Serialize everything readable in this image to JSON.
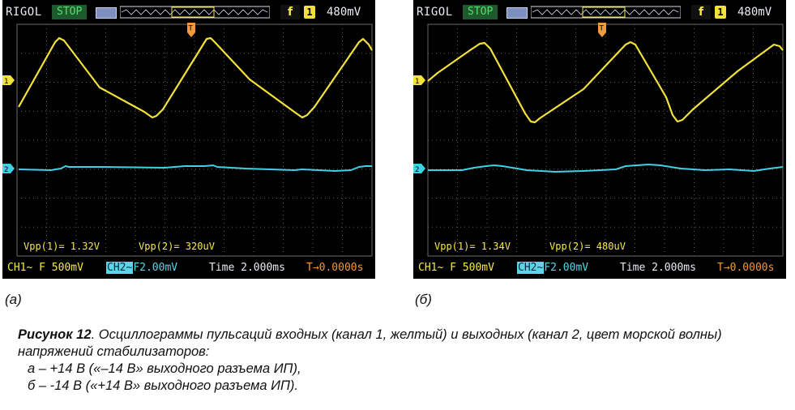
{
  "scopes": [
    {
      "brand": "RIGOL",
      "status": "STOP",
      "trigger_symbol": "f",
      "trigger_channel": "1",
      "trigger_level": "480mV",
      "vpp1_label": "Vpp(1)= 1.32V",
      "vpp2_label": "Vpp(2)= 320uV",
      "ch1_settings": "CH1~ F 500mV",
      "ch2_badge": "CH2~",
      "ch2_settings": "F2.00mV",
      "timebase": "Time 2.000ms",
      "trigger_offset": "T→0.0000s",
      "ch1_marker": "1",
      "ch2_marker": "2",
      "colors": {
        "ch1": "#f3e23a",
        "ch2": "#3fd1e4",
        "grid": "#5a5a5a"
      }
    },
    {
      "brand": "RIGOL",
      "status": "STOP",
      "trigger_symbol": "f",
      "trigger_channel": "1",
      "trigger_level": "480mV",
      "vpp1_label": "Vpp(1)= 1.34V",
      "vpp2_label": "Vpp(2)= 480uV",
      "ch1_settings": "CH1~ F 500mV",
      "ch2_badge": "CH2~",
      "ch2_settings": "F2.00mV",
      "timebase": "Time 2.000ms",
      "trigger_offset": "T→0.0000s",
      "ch1_marker": "1",
      "ch2_marker": "2",
      "colors": {
        "ch1": "#f3e23a",
        "ch2": "#3fd1e4",
        "grid": "#5a5a5a"
      }
    }
  ],
  "sublabels": [
    "(а)",
    "(б)"
  ],
  "caption": {
    "figure": "Рисунок 12",
    "text": ". Осциллограммы пульсаций входных (канал 1, желтый) и выходных (канал 2, цвет морской волны) напряжений стабилизаторов:",
    "item_a": "а – +14 В («–14 В» выходного разъема ИП),",
    "item_b": "б  – -14 В («+14 В» выходного разъема ИП)."
  }
}
